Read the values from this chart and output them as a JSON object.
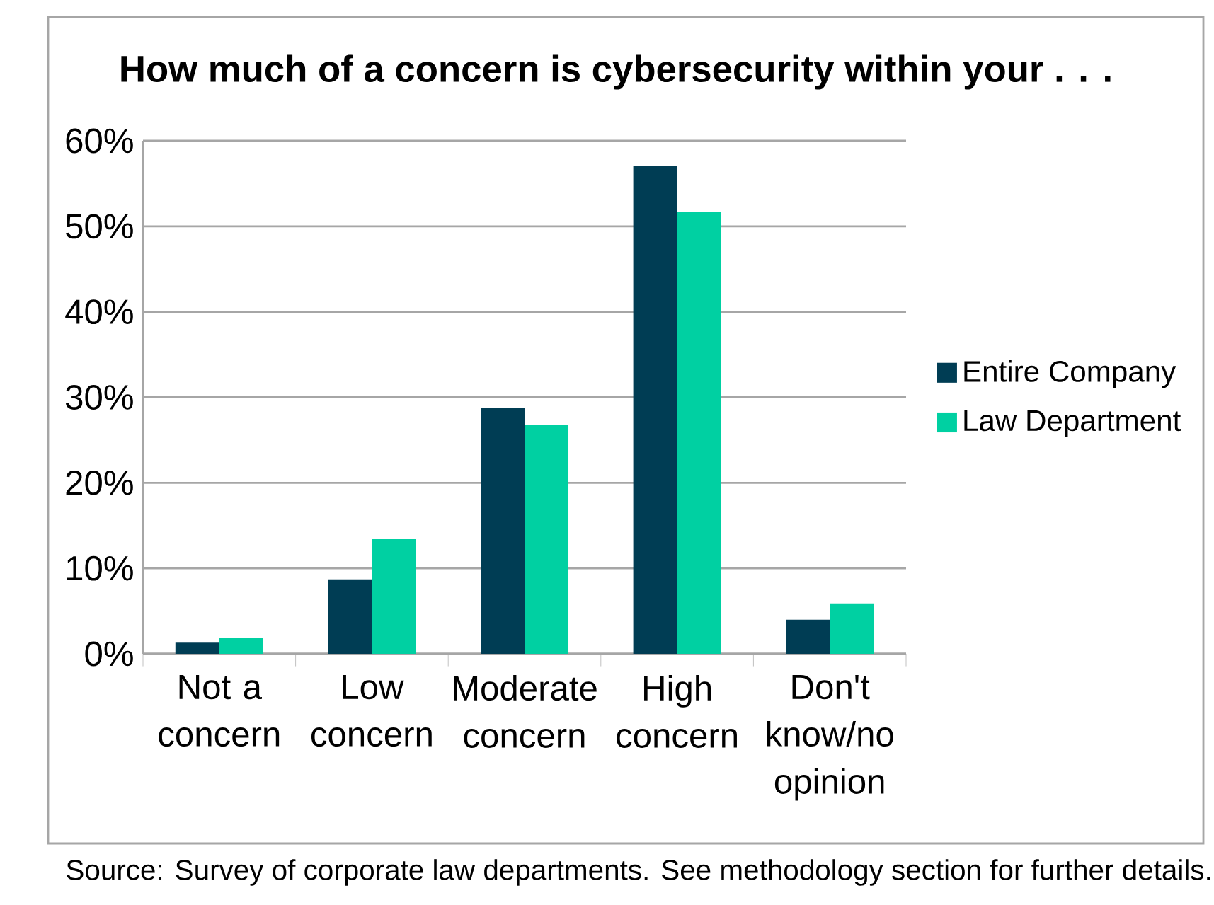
{
  "chart_data": {
    "type": "bar",
    "title": "How much of a concern is cybersecurity within your . . .",
    "categories": [
      "Not a concern",
      "Low concern",
      "Moderate concern",
      "High concern",
      "Don't know/no opinion"
    ],
    "series": [
      {
        "name": "Entire Company",
        "color": "#003d54",
        "values": [
          1.3,
          8.7,
          28.8,
          57.1,
          4.0
        ]
      },
      {
        "name": "Law Department",
        "color": "#00d0a2",
        "values": [
          1.9,
          13.4,
          26.8,
          51.7,
          5.9
        ]
      }
    ],
    "ylim": [
      0,
      60
    ],
    "yticks": [
      {
        "value": 0,
        "label": "0%"
      },
      {
        "value": 10,
        "label": "10%"
      },
      {
        "value": 20,
        "label": "20%"
      },
      {
        "value": 30,
        "label": "30%"
      },
      {
        "value": 40,
        "label": "40%"
      },
      {
        "value": 50,
        "label": "50%"
      },
      {
        "value": 60,
        "label": "60%"
      }
    ],
    "grid": "y",
    "legend": "right",
    "annotations": [
      "Source: Survey of corporate law departments. See methodology section for further details."
    ]
  }
}
